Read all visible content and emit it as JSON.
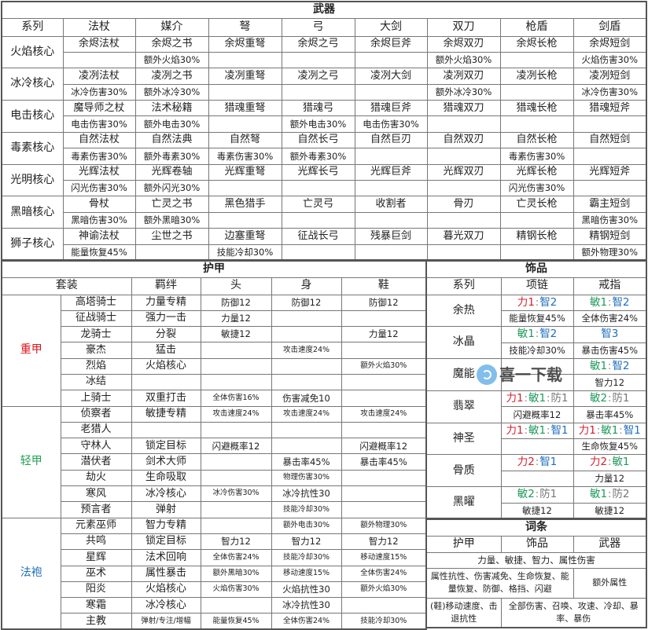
{
  "colors": {
    "str": "#d5202c",
    "agi": "#1e9a5c",
    "int": "#1f6fbf",
    "def": "#777777",
    "heavy": "#e0141e",
    "light": "#22a050",
    "robe": "#1f6fb5"
  },
  "weapons": {
    "title": "武器",
    "columns": [
      "系列",
      "法杖",
      "媒介",
      "弩",
      "弓",
      "大剑",
      "双刀",
      "枪盾",
      "剑盾"
    ],
    "rows": [
      {
        "series": "火焰核心",
        "items": [
          [
            "余烬法杖",
            ""
          ],
          [
            "余烬之书",
            "额外火焰30%"
          ],
          [
            "余烬重弩",
            ""
          ],
          [
            "余烬之弓",
            ""
          ],
          [
            "余烬巨斧",
            ""
          ],
          [
            "余烬双刃",
            "额外火焰30%"
          ],
          [
            "余烬长枪",
            ""
          ],
          [
            "余烬短剑",
            "火焰伤害30%"
          ]
        ]
      },
      {
        "series": "冰冷核心",
        "items": [
          [
            "凌冽法杖",
            "冰冷伤害30%"
          ],
          [
            "凌冽之书",
            "额外冰冷30%"
          ],
          [
            "凌冽重弩",
            ""
          ],
          [
            "凌冽之弓",
            ""
          ],
          [
            "凌冽大剑",
            ""
          ],
          [
            "凌冽双刃",
            "额外冰冷30%"
          ],
          [
            "凌冽长枪",
            ""
          ],
          [
            "凌冽短剑",
            "冰冷伤害30%"
          ]
        ]
      },
      {
        "series": "电击核心",
        "items": [
          [
            "魔导师之杖",
            "电击伤害30%"
          ],
          [
            "法术秘籍",
            "额外电击30%"
          ],
          [
            "猎魂重弩",
            ""
          ],
          [
            "猎魂弓",
            "额外电击30%"
          ],
          [
            "猎魂巨斧",
            "电击伤害30%"
          ],
          [
            "猎魂双刀",
            ""
          ],
          [
            "猎魂长枪",
            ""
          ],
          [
            "猎魂短斧",
            ""
          ]
        ]
      },
      {
        "series": "毒素核心",
        "items": [
          [
            "自然法杖",
            "毒素伤害30%"
          ],
          [
            "自然法典",
            "额外毒素30%"
          ],
          [
            "自然弩",
            "毒素伤害30%"
          ],
          [
            "自然长弓",
            "额外毒素30%"
          ],
          [
            "自然巨刃",
            ""
          ],
          [
            "自然双刃",
            ""
          ],
          [
            "自然长枪",
            "毒素伤害30%"
          ],
          [
            "自然短剑",
            ""
          ]
        ]
      },
      {
        "series": "光明核心",
        "items": [
          [
            "光辉法杖",
            "闪光伤害30%"
          ],
          [
            "光辉卷轴",
            "额外闪光30%"
          ],
          [
            "光辉重弩",
            ""
          ],
          [
            "光辉长弓",
            ""
          ],
          [
            "光辉巨斧",
            ""
          ],
          [
            "光辉双刃",
            ""
          ],
          [
            "光辉长枪",
            "闪光伤害30%"
          ],
          [
            "光辉短斧",
            ""
          ]
        ]
      },
      {
        "series": "黑暗核心",
        "items": [
          [
            "骨杖",
            "黑暗伤害30%"
          ],
          [
            "亡灵之书",
            "额外黑暗30%"
          ],
          [
            "黑色猎手",
            ""
          ],
          [
            "亡灵弓",
            ""
          ],
          [
            "收割者",
            ""
          ],
          [
            "骨刃",
            ""
          ],
          [
            "亡灵长枪",
            ""
          ],
          [
            "霸主短剑",
            "黑暗伤害30%"
          ]
        ]
      },
      {
        "series": "狮子核心",
        "items": [
          [
            "神谕法杖",
            "能量恢复45%"
          ],
          [
            "尘世之书",
            ""
          ],
          [
            "边塞重弩",
            "技能冷却30%"
          ],
          [
            "征战长弓",
            ""
          ],
          [
            "残暴巨剑",
            ""
          ],
          [
            "暮光双刀",
            ""
          ],
          [
            "精钢长枪",
            ""
          ],
          [
            "精钢短剑",
            "额外物理30%"
          ]
        ]
      }
    ]
  },
  "armor": {
    "title": "护甲",
    "columns": [
      "套装",
      "羁绊",
      "头",
      "身",
      "鞋"
    ],
    "groups": [
      {
        "label": "重甲",
        "color": "heavy",
        "sets": [
          [
            "高塔骑士",
            "力量专精",
            "防御12",
            "防御12",
            "防御12"
          ],
          [
            "征战骑士",
            "强力一击",
            "力量12",
            "",
            ""
          ],
          [
            "龙骑士",
            "分裂",
            "敏捷12",
            "",
            "力量12"
          ],
          [
            "豪杰",
            "猛击",
            "",
            "攻击速度24%",
            ""
          ],
          [
            "烈焰",
            "火焰核心",
            "",
            "",
            "额外火焰30%"
          ],
          [
            "冰结",
            "",
            "",
            "",
            ""
          ],
          [
            "上骑士",
            "双重打击",
            "全体伤害16%",
            "伤害减免10",
            ""
          ]
        ]
      },
      {
        "label": "轻甲",
        "color": "light",
        "sets": [
          [
            "侦察者",
            "敏捷专精",
            "攻击速度24%",
            "攻击速度24%",
            "攻击速度24%"
          ],
          [
            "老猎人",
            "",
            "",
            "",
            ""
          ],
          [
            "守林人",
            "锁定目标",
            "闪避概率12",
            "",
            "闪避概率12"
          ],
          [
            "潜伏者",
            "剑术大师",
            "",
            "暴击率45%",
            "暴击率45%"
          ],
          [
            "劫火",
            "生命吸取",
            "",
            "物理伤害30%",
            ""
          ],
          [
            "寒风",
            "冰冷核心",
            "冰冷伤害30%",
            "冰冷抗性30",
            ""
          ],
          [
            "预言者",
            "弹射",
            "",
            "技能冷却30%",
            ""
          ]
        ]
      },
      {
        "label": "法袍",
        "color": "robe",
        "sets": [
          [
            "元素巫师",
            "智力专精",
            "",
            "额外电击30%",
            "额外物理30%"
          ],
          [
            "共鸣",
            "锁定目标",
            "智力12",
            "智力12",
            "智力12"
          ],
          [
            "星辉",
            "法术回响",
            "全体伤害24%",
            "技能冷却30%",
            "移动速度15%"
          ],
          [
            "巫术",
            "属性暴击",
            "额外黑暗30%",
            "移动速度15%",
            "全体伤害24%"
          ],
          [
            "阳炎",
            "火焰核心",
            "火焰伤害30%",
            "火焰抗性30",
            "额外火焰30%"
          ],
          [
            "寒霜",
            "冰冷核心",
            "",
            "冰冷抗性30",
            ""
          ],
          [
            "主教",
            "弹射/专注/增幅",
            "能量恢复45%",
            "全体伤害24%",
            "技能冷却30%"
          ]
        ]
      }
    ]
  },
  "accessories": {
    "title": "饰品",
    "columns": [
      "系列",
      "项链",
      "戒指"
    ],
    "sep": ":",
    "rows": [
      {
        "series": "余热",
        "necklace": {
          "tokens": [
            {
              "t": "力1",
              "c": "str"
            },
            {
              "t": "智2",
              "c": "int"
            }
          ],
          "stat": "能量恢复45%"
        },
        "ring": {
          "tokens": [
            {
              "t": "敏1",
              "c": "agi"
            },
            {
              "t": "智2",
              "c": "int"
            }
          ],
          "stat": "全体伤害24%"
        }
      },
      {
        "series": "冰晶",
        "necklace": {
          "tokens": [
            {
              "t": "敏1",
              "c": "agi"
            },
            {
              "t": "智2",
              "c": "int"
            }
          ],
          "stat": "技能冷却30%"
        },
        "ring": {
          "tokens": [
            {
              "t": "智3",
              "c": "int"
            }
          ],
          "stat": "暴击伤害45%"
        }
      },
      {
        "series": "魔能",
        "necklace": {
          "tokens": [],
          "stat": ""
        },
        "ring": {
          "tokens": [
            {
              "t": "敏1",
              "c": "agi"
            },
            {
              "t": "智2",
              "c": "int"
            }
          ],
          "stat": "智力12"
        }
      },
      {
        "series": "翡翠",
        "necklace": {
          "tokens": [
            {
              "t": "力1",
              "c": "str"
            },
            {
              "t": "敏1",
              "c": "agi"
            },
            {
              "t": "防1",
              "c": "def"
            }
          ],
          "stat": "闪避概率12"
        },
        "ring": {
          "tokens": [
            {
              "t": "敏2",
              "c": "agi"
            },
            {
              "t": "防1",
              "c": "def"
            }
          ],
          "stat": "暴击率45%"
        }
      },
      {
        "series": "神圣",
        "necklace": {
          "tokens": [
            {
              "t": "力1",
              "c": "str"
            },
            {
              "t": "敏1",
              "c": "agi"
            },
            {
              "t": "智1",
              "c": "int"
            }
          ],
          "stat": ""
        },
        "ring": {
          "tokens": [
            {
              "t": "力1",
              "c": "str"
            },
            {
              "t": "敏1",
              "c": "agi"
            },
            {
              "t": "智1",
              "c": "int"
            }
          ],
          "stat": "生命恢复45%"
        }
      },
      {
        "series": "骨质",
        "necklace": {
          "tokens": [
            {
              "t": "力2",
              "c": "str"
            },
            {
              "t": "智1",
              "c": "int"
            }
          ],
          "stat": ""
        },
        "ring": {
          "tokens": [
            {
              "t": "力2",
              "c": "str"
            },
            {
              "t": "敏1",
              "c": "agi"
            }
          ],
          "stat": "力量12"
        }
      },
      {
        "series": "黑曜",
        "necklace": {
          "tokens": [
            {
              "t": "敏2",
              "c": "agi"
            },
            {
              "t": "防1",
              "c": "def"
            }
          ],
          "stat": "敏捷12"
        },
        "ring": {
          "tokens": [
            {
              "t": "敏1",
              "c": "agi"
            },
            {
              "t": "防2",
              "c": "def"
            }
          ],
          "stat": "敏捷12"
        }
      }
    ]
  },
  "affixes": {
    "title": "词条",
    "columns": [
      "护甲",
      "饰品",
      "武器"
    ],
    "rows": [
      [
        "力量、敏捷、智力、属性伤害"
      ],
      [
        "属性抗性、伤害减免、生命恢复、能量恢复、防御、格挡、闪避",
        "额外属性"
      ],
      [
        "(鞋)移动速度、击退抗性",
        "全部伤害、召唤、攻速、冷却、暴率、暴伤"
      ]
    ]
  },
  "watermark": {
    "text": "喜一下载",
    "icon": "download-site-logo-icon"
  }
}
